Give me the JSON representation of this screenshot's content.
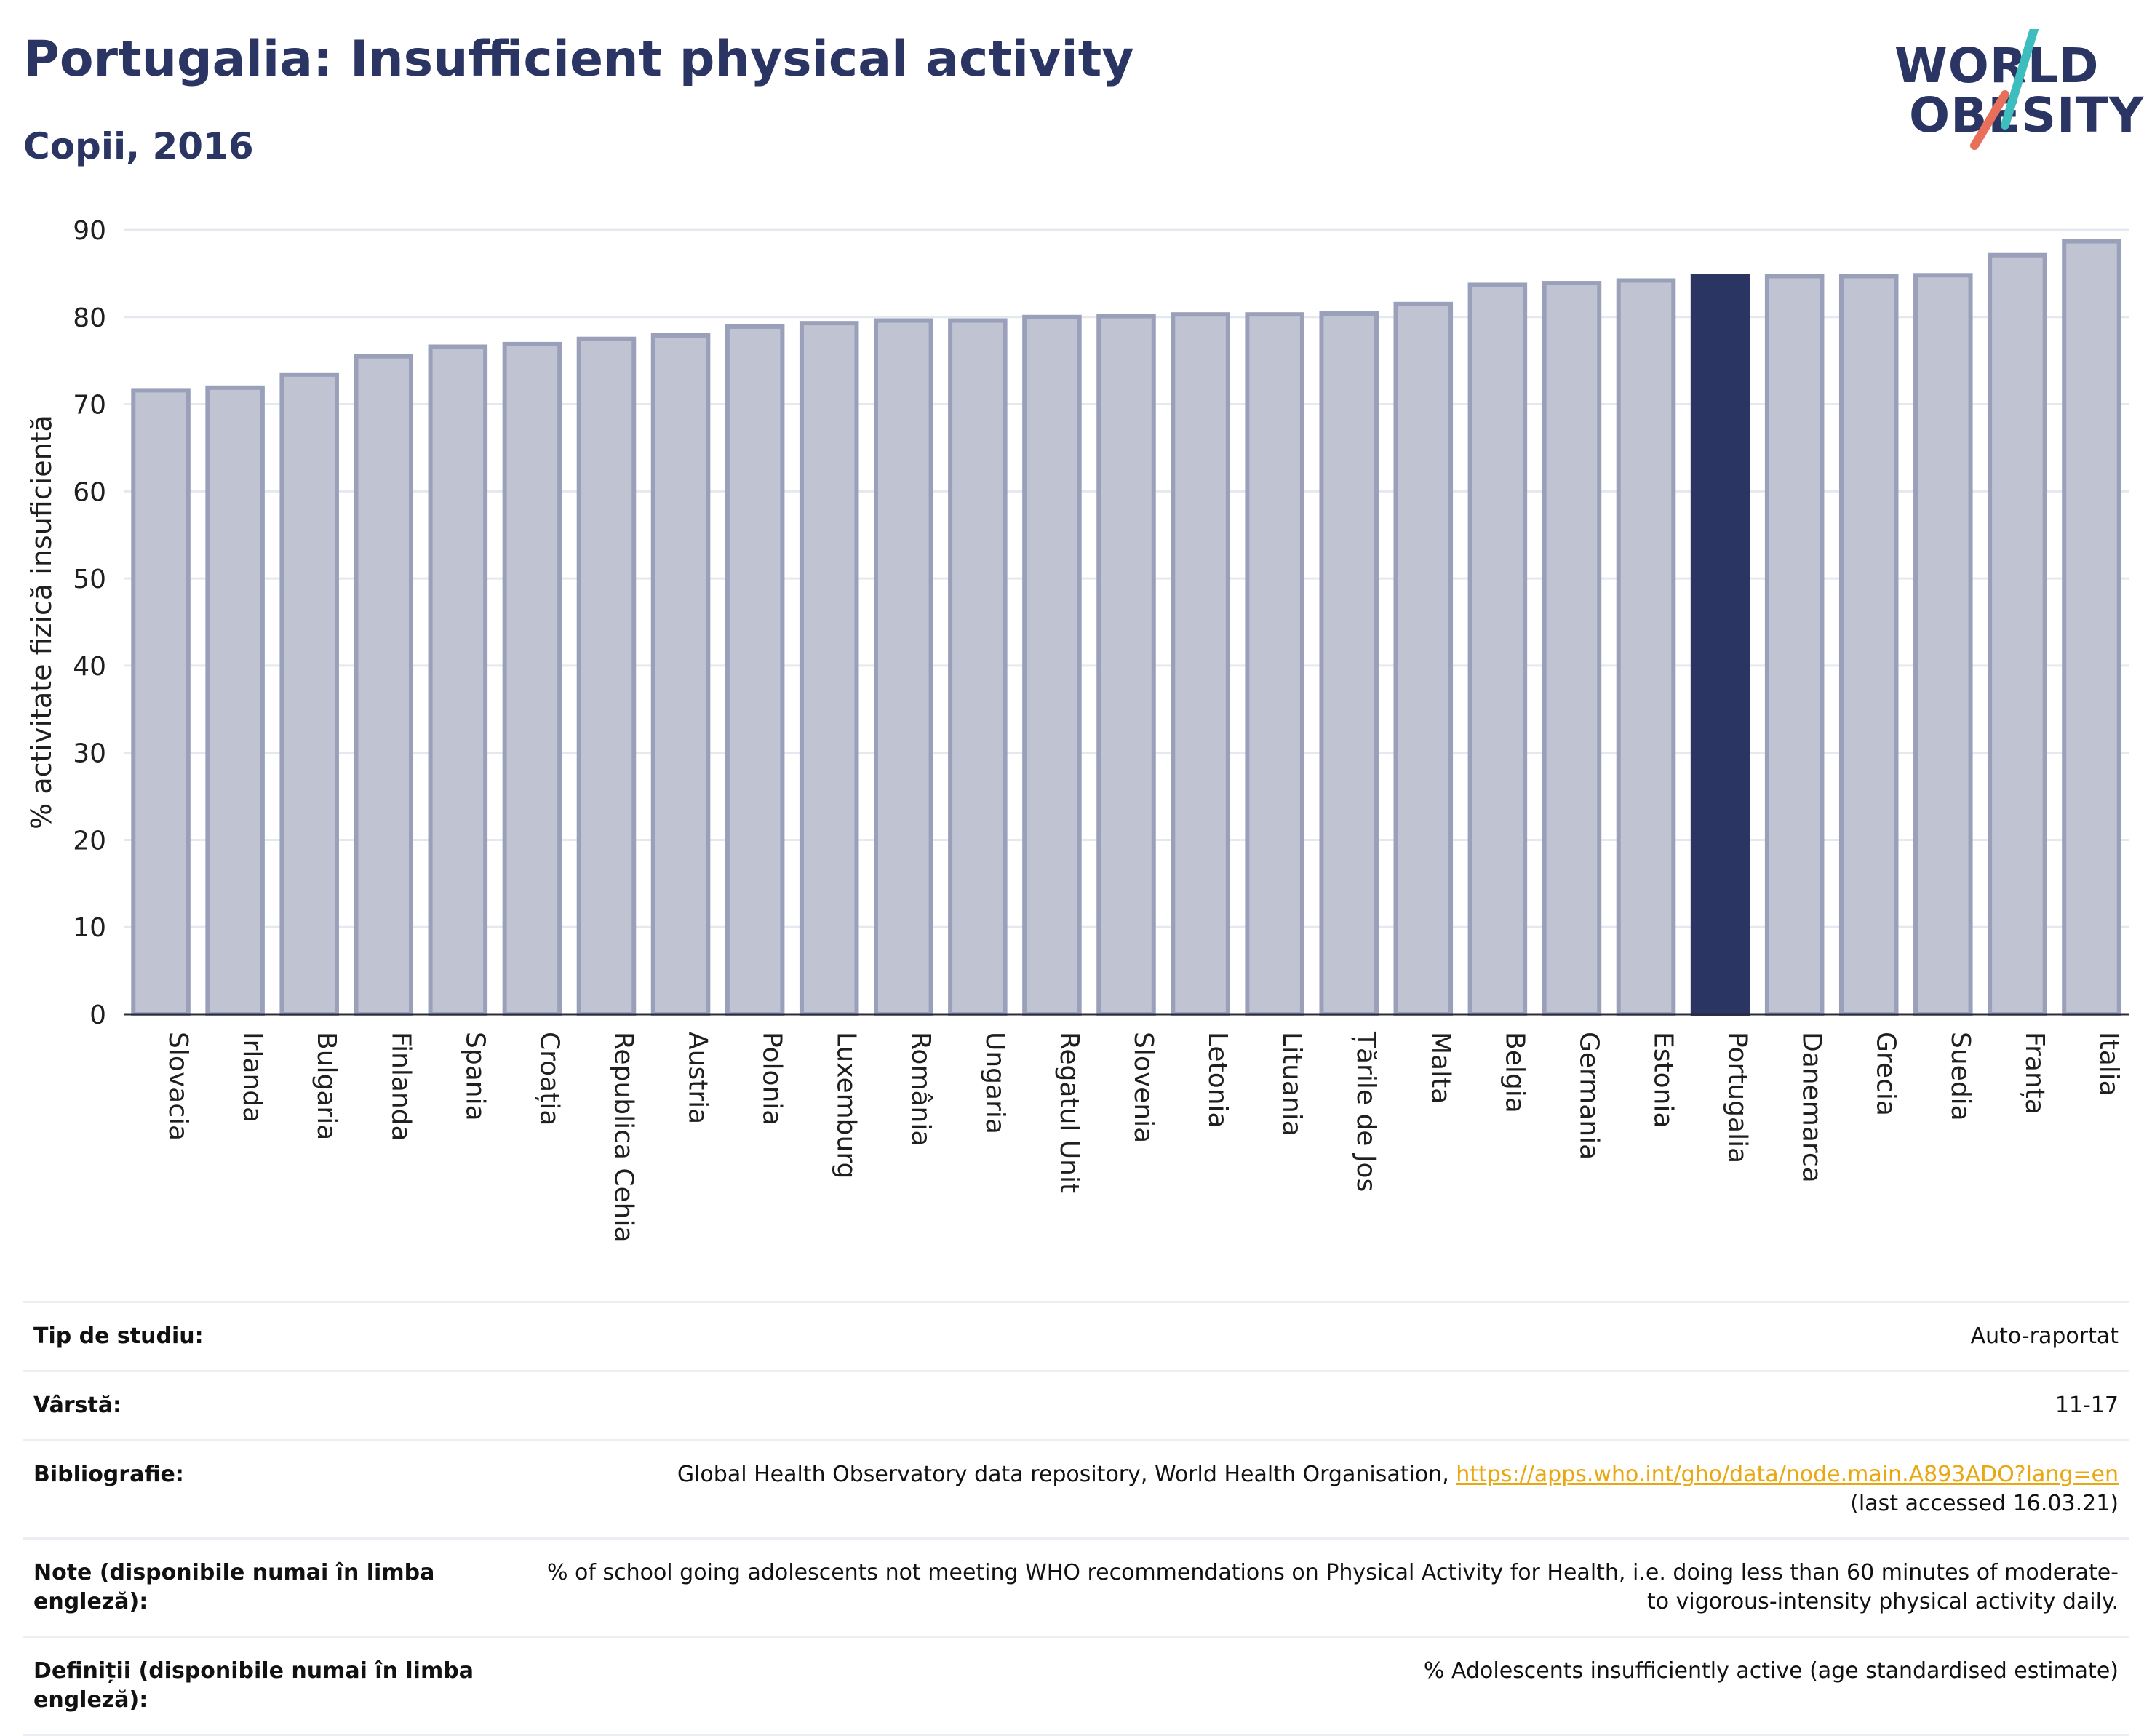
{
  "header": {
    "title": "Portugalia: Insufficient physical activity",
    "subtitle": "Copii, 2016"
  },
  "logo": {
    "line1": "WORLD",
    "line2": "OBESITY",
    "colors": {
      "text": "#2b3563",
      "slash_top": "#3dbdbd",
      "slash_bottom": "#e8705a"
    }
  },
  "chart_data": {
    "type": "bar",
    "ylabel": "% activitate fizică insuficientă",
    "xlabel": "",
    "ylim": [
      0,
      90
    ],
    "yticks": [
      0,
      10,
      20,
      30,
      40,
      50,
      60,
      70,
      80,
      90
    ],
    "grid": true,
    "highlight": "Portugalia",
    "colors": {
      "bar": "#c0c4d2",
      "bar_border": "#9aa0ba",
      "highlight": "#2b3563"
    },
    "categories": [
      "Slovacia",
      "Irlanda",
      "Bulgaria",
      "Finlanda",
      "Spania",
      "Croația",
      "Republica Cehia",
      "Austria",
      "Polonia",
      "Luxemburg",
      "România",
      "Ungaria",
      "Regatul Unit",
      "Slovenia",
      "Letonia",
      "Lituania",
      "Țările de Jos",
      "Malta",
      "Belgia",
      "Germania",
      "Estonia",
      "Portugalia",
      "Danemarca",
      "Grecia",
      "Suedia",
      "Franța",
      "Italia"
    ],
    "values": [
      71.6,
      71.9,
      73.4,
      75.5,
      76.6,
      76.9,
      77.5,
      77.9,
      78.9,
      79.3,
      79.6,
      79.6,
      80.0,
      80.1,
      80.3,
      80.3,
      80.4,
      81.5,
      83.7,
      83.9,
      84.2,
      84.7,
      84.7,
      84.7,
      84.8,
      87.1,
      88.7
    ]
  },
  "meta": {
    "rows": [
      {
        "label": "Tip de studiu:",
        "value": "Auto-raportat"
      },
      {
        "label": "Vârstă:",
        "value": "11-17"
      },
      {
        "label": "Bibliografie:",
        "value": "Global Health Observatory data repository, World Health Organisation, ",
        "link": "https://apps.who.int/gho/data/node.main.A893ADO?lang=en",
        "after": "(last accessed 16.03.21)"
      },
      {
        "label": "Note (disponibile numai în limba engleză):",
        "value": "% of school going adolescents not meeting WHO recommendations on Physical Activity for Health, i.e. doing less than 60 minutes of moderate- to vigorous-intensity physical activity daily."
      },
      {
        "label": "Definiții (disponibile numai în limba engleză):",
        "value": "% Adolescents insufficiently active (age standardised estimate)"
      }
    ]
  }
}
